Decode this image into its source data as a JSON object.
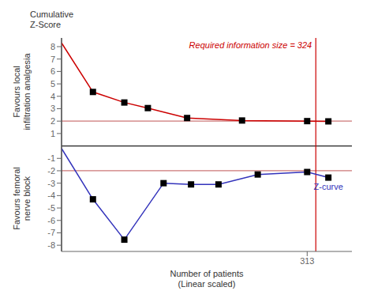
{
  "chart_data": {
    "type": "line",
    "y_label": "Cumulative\nZ-Score",
    "y_label_upper": "Favours local\ninfiltration analgesia",
    "y_label_lower": "Favours femoral\nnerve block",
    "x_label": "Number of patients\n(Linear scaled)",
    "xlim": [
      0,
      370
    ],
    "xticks": [
      313
    ],
    "ylim": [
      -8.5,
      8.7
    ],
    "yticks": [
      -8,
      -7,
      -6,
      -5,
      -4,
      -3,
      -2,
      -1,
      1,
      2,
      3,
      4,
      5,
      6,
      7,
      8
    ],
    "grid": false,
    "hlines": [
      {
        "y": 2.0,
        "color": "#cc7777"
      },
      {
        "y": -2.0,
        "color": "#cc7777"
      },
      {
        "y": 0,
        "color": "#222222"
      }
    ],
    "vlines": [
      {
        "x": 0,
        "color": "#222222"
      },
      {
        "x": 324,
        "color": "#cc0000",
        "label": "Required information size = 324"
      }
    ],
    "series": [
      {
        "type": "line",
        "color": "#cc0000",
        "x": [
          0,
          40,
          80,
          110,
          160,
          230,
          313,
          340
        ],
        "values": [
          8.3,
          4.35,
          3.5,
          3.05,
          2.25,
          2.05,
          2.0,
          1.98
        ]
      },
      {
        "type": "scatter",
        "marker": "square",
        "color": "#000000",
        "x": [
          40,
          80,
          110,
          160,
          230,
          313,
          340
        ],
        "values": [
          4.35,
          3.5,
          3.05,
          2.25,
          2.05,
          2.0,
          1.98
        ]
      },
      {
        "type": "line",
        "color": "#3333bb",
        "label": "Z-curve",
        "x": [
          0,
          40,
          80,
          130,
          165,
          200,
          250,
          313,
          340
        ],
        "values": [
          -0.2,
          -4.3,
          -7.55,
          -3.0,
          -3.1,
          -3.1,
          -2.3,
          -2.1,
          -2.55
        ]
      },
      {
        "type": "scatter",
        "marker": "square",
        "color": "#000000",
        "x": [
          40,
          80,
          130,
          165,
          200,
          250,
          313,
          340
        ],
        "values": [
          -4.3,
          -7.55,
          -3.0,
          -3.1,
          -3.1,
          -2.3,
          -2.1,
          -2.55
        ]
      }
    ]
  }
}
